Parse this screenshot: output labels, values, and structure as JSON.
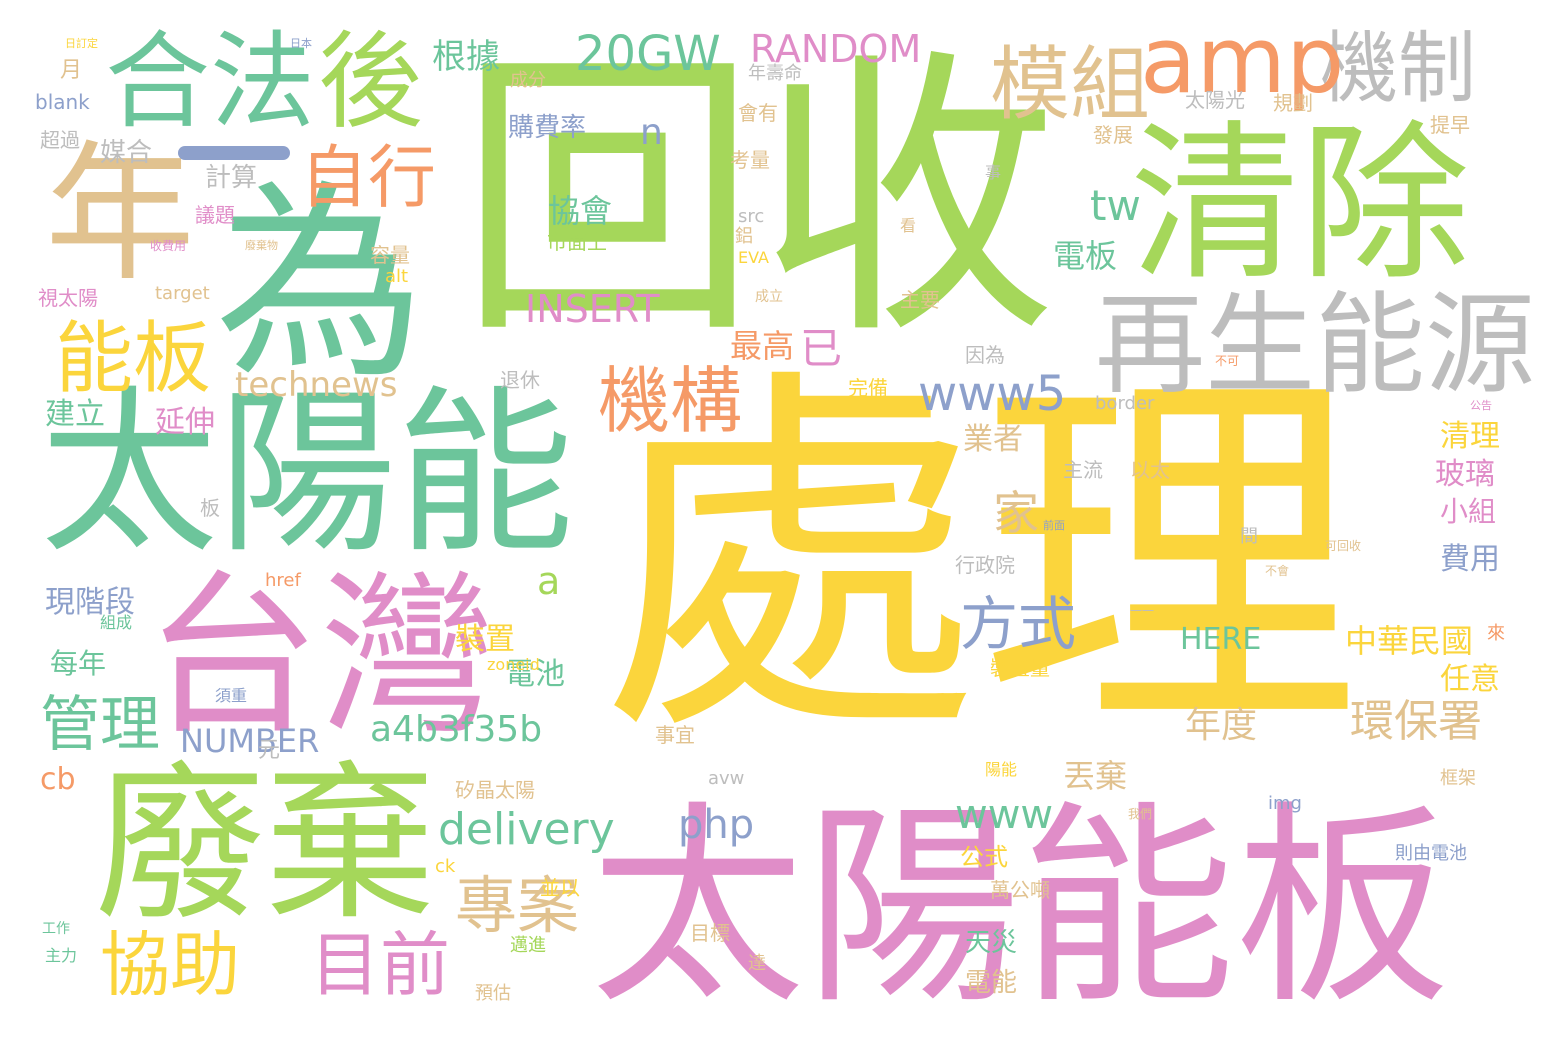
{
  "word_cloud": {
    "palette": {
      "green": "#a5d75a",
      "yellow": "#fbd53c",
      "teal": "#6cc59b",
      "pink": "#e08dc8",
      "orange": "#f59a67",
      "grey": "#bdbdbd",
      "blue": "#8da0cb",
      "sand": "#e1c28f"
    },
    "words": {
      "w01": "回收",
      "w02": "處理",
      "w03": "太陽能板",
      "w04": "太陽能",
      "w05": "清除",
      "w06": "為",
      "w07": "廢棄",
      "w08": "台灣",
      "w09": "年",
      "w10": "再生能源",
      "w11": "合法",
      "w12": "後",
      "w13": "機制",
      "w14": "amp",
      "w15": "模組",
      "w16": "能板",
      "w17": "機構",
      "w18": "自行",
      "w19": "協助",
      "w20": "目前",
      "w21": "管理",
      "w22": "專案",
      "w23": "方式",
      "w24": "20GW",
      "w25": "RANDOM",
      "w26": "technews",
      "w27": "www5",
      "w28": "delivery",
      "w29": "a4b3f35b",
      "w30": "INSERT",
      "w31": "NUMBER",
      "w32": "php",
      "w33": "www",
      "w34": "環保署",
      "w35": "中華民國",
      "w36": "tw",
      "w37": "HERE",
      "w38": "根據",
      "w39": "購費率",
      "w40": "協會",
      "w41": "市面上",
      "w42": "電板",
      "w43": "最高",
      "w44": "已",
      "w45": "家",
      "w46": "a",
      "w47": "n",
      "w48": "現階段",
      "w49": "每年",
      "w50": "建立",
      "w51": "延伸",
      "w52": "媒合",
      "w53": "計算",
      "w54": "業者",
      "w55": "清理",
      "w56": "玻璃",
      "w57": "小組",
      "w58": "費用",
      "w59": "任意",
      "w60": "年度",
      "w61": "裝置",
      "w62": "電池",
      "w63": "天災",
      "w64": "丟棄",
      "w65": "公式",
      "w66": "電能",
      "w67": "cb",
      "w68": "太陽光",
      "w69": "會有",
      "w70": "考量",
      "w71": "發展",
      "w72": "規劃",
      "w73": "提早",
      "w74": "年壽命",
      "w75": "成分",
      "w76": "blank",
      "w77": "超過",
      "w78": "月",
      "w79": "議題",
      "w80": "容量",
      "w81": "主要",
      "w82": "完備",
      "w83": "退休",
      "w84": "因為",
      "w85": "主流",
      "w86": "以太",
      "w87": "行政院",
      "w88": "裝置量",
      "w89": "萬公噸",
      "w90": "元",
      "w91": "事宜",
      "w92": "矽晶太陽",
      "w93": "並以",
      "w94": "目標",
      "w95": "預估",
      "w96": "邁進",
      "w97": "達",
      "w98": "則由電池",
      "w99": "框架",
      "w100": "img",
      "w101": "avw",
      "w102": "href",
      "w103": "zoneid",
      "w104": "ck",
      "w105": "組成",
      "w106": "主力",
      "w107": "工作",
      "w108": "target",
      "w109": "alt",
      "w110": "src",
      "w111": "EVA",
      "w112": "鋁",
      "w113": "border",
      "w114": "視太陽",
      "w115": "板",
      "w116": "間",
      "w117": "來",
      "w118": "須重",
      "w119": "日本",
      "w120": "日訂定",
      "w121": "廢棄物",
      "w122": "收費用",
      "w123": "事",
      "w124": "看",
      "w125": "公告",
      "w126": "陽能",
      "w127": "成立",
      "w128": "可回收",
      "w129": "不可",
      "w130": "不會",
      "w131": "一一",
      "w132": "前面",
      "w133": "我們"
    }
  }
}
